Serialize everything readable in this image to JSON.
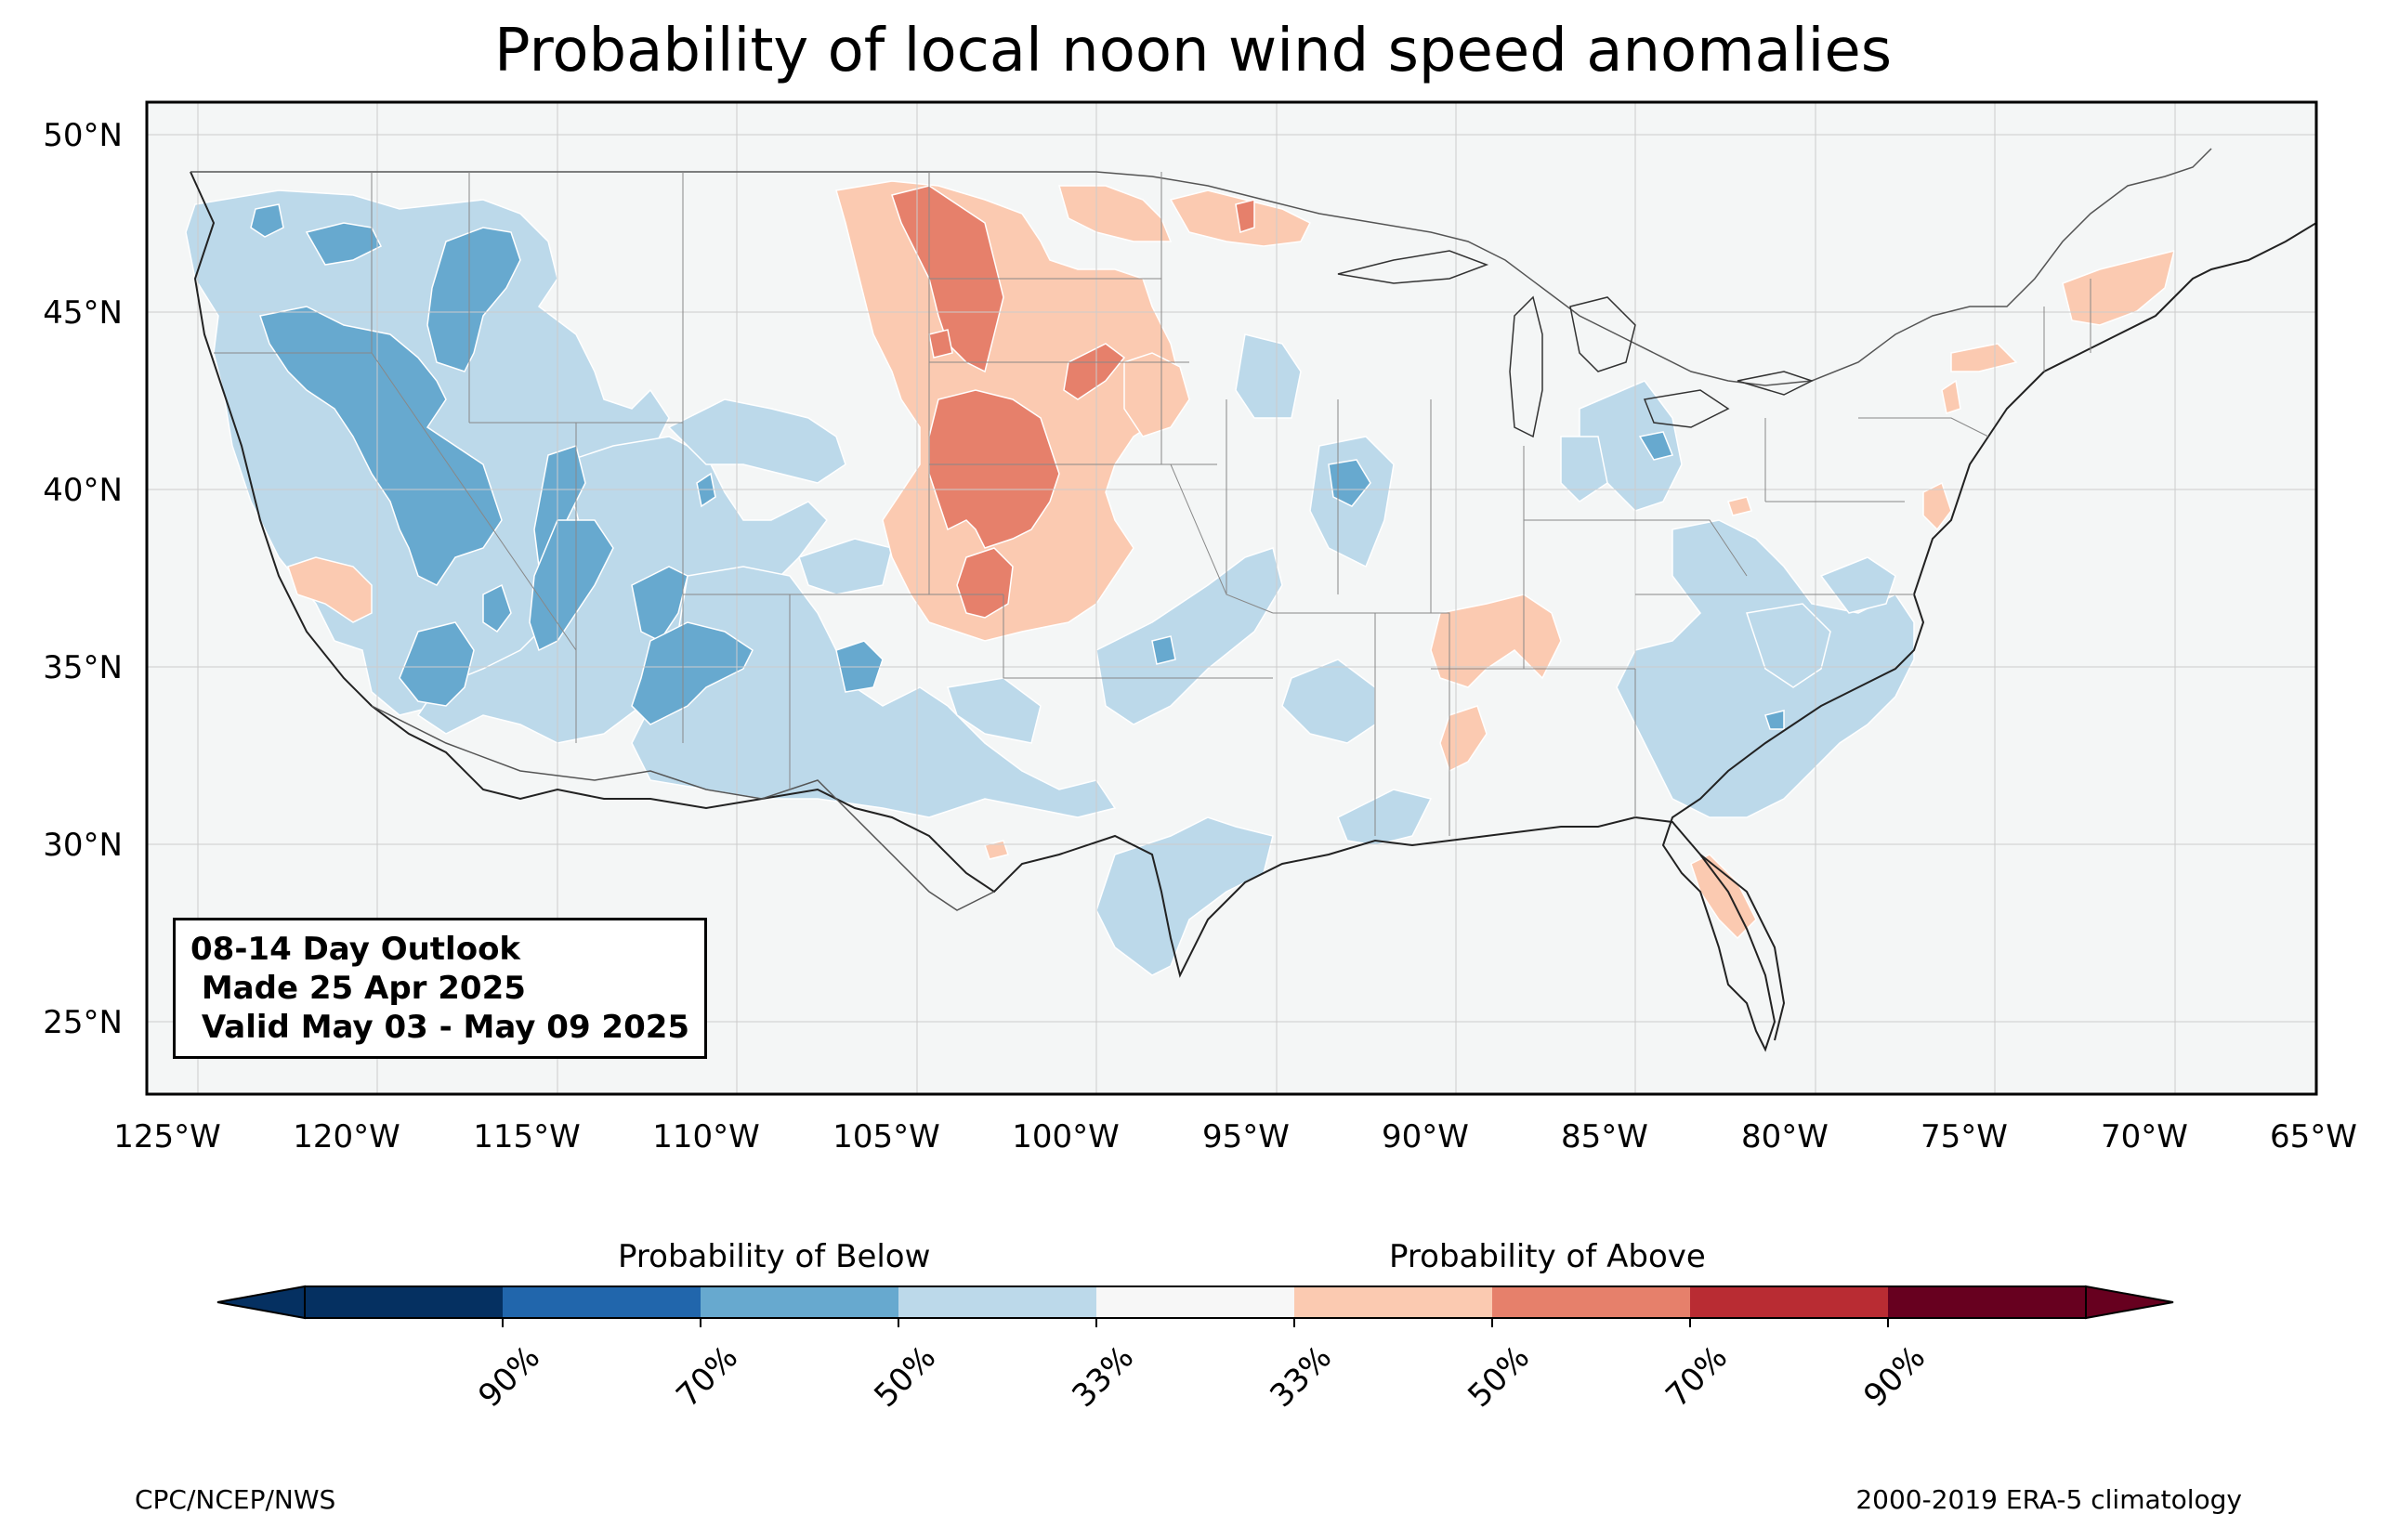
{
  "title": "Probability of local noon wind speed anomalies",
  "info_box": {
    "line1": "08-14 Day Outlook",
    "line2": " Made 25 Apr 2025",
    "line3": " Valid May 03 - May 09 2025"
  },
  "axes": {
    "lon_ticks": [
      "125°W",
      "120°W",
      "115°W",
      "110°W",
      "105°W",
      "100°W",
      "95°W",
      "90°W",
      "85°W",
      "80°W",
      "75°W",
      "70°W",
      "65°W"
    ],
    "lat_ticks": [
      "50°N",
      "45°N",
      "40°N",
      "35°N",
      "30°N",
      "25°N"
    ]
  },
  "colorbar": {
    "below_label": "Probability of Below",
    "above_label": "Probability of Above",
    "tick_labels": [
      "90%",
      "70%",
      "50%",
      "33%",
      "33%",
      "50%",
      "70%",
      "90%"
    ],
    "colors": [
      "#053061",
      "#2166ac",
      "#67a9cf",
      "#bcd9ea",
      "#f7f7f7",
      "#fbcab1",
      "#e6806b",
      "#b92c33",
      "#67001f"
    ]
  },
  "legend_colors": {
    "below_33": "#bcd9ea",
    "below_50": "#67a9cf",
    "above_33": "#fbcab1",
    "above_50": "#e6806b",
    "neutral": "#f4f6f6"
  },
  "credits": {
    "left": "CPC/NCEP/NWS",
    "right": "2000-2019 ERA-5 climatology"
  }
}
